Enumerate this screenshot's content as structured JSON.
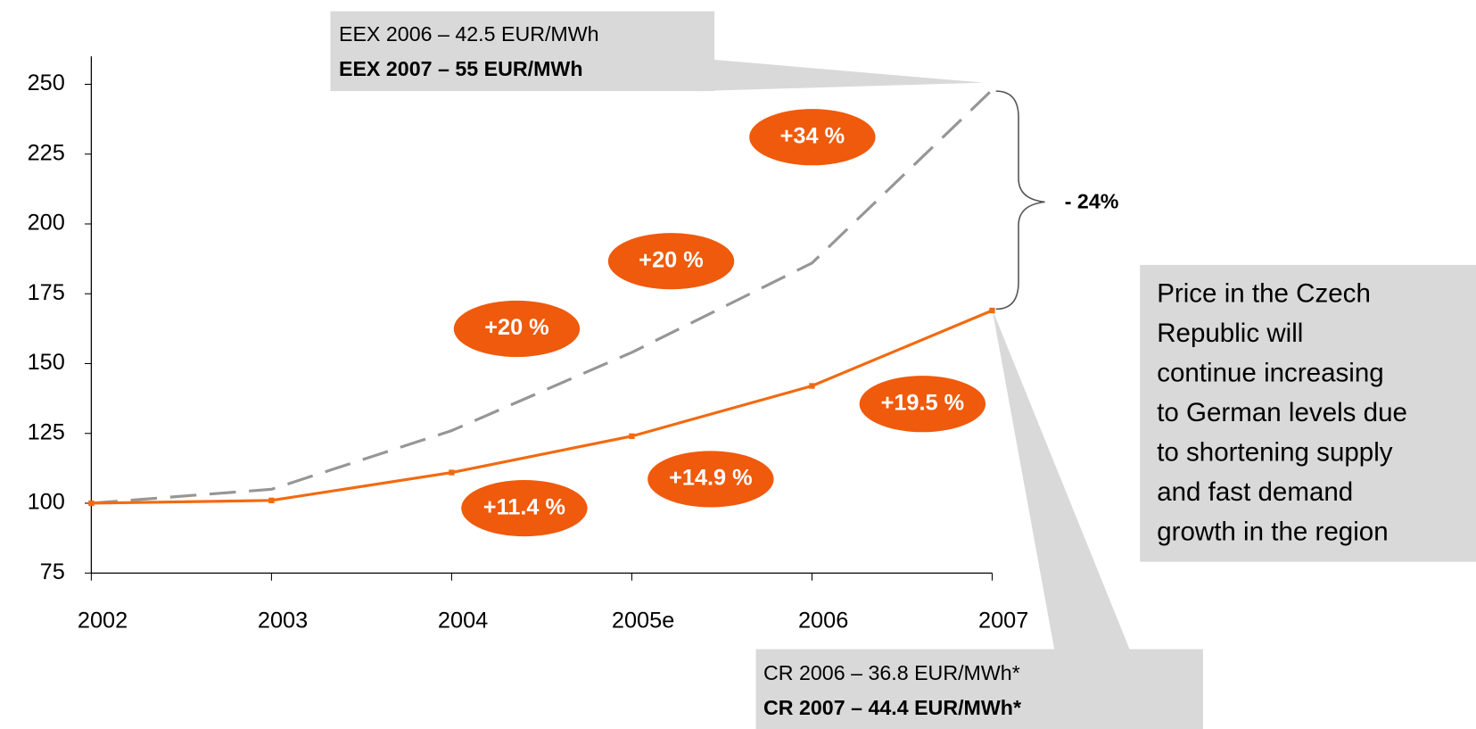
{
  "chart_data": {
    "type": "line",
    "categories": [
      "2002",
      "2003",
      "2004",
      "2005e",
      "2006",
      "2007"
    ],
    "series": [
      {
        "color": "#969696",
        "dashed": true,
        "values": [
          100,
          105,
          126,
          154,
          186,
          248
        ]
      },
      {
        "color": "#f26a10",
        "dashed": false,
        "values": [
          100,
          101,
          111,
          124,
          142,
          169
        ]
      }
    ],
    "ylim": [
      75,
      260
    ],
    "yticks": [
      75,
      100,
      125,
      150,
      175,
      200,
      225,
      250
    ],
    "growth_labels": [
      "+34 %",
      "+20 %",
      "+20 %",
      "+19.5 %",
      "+14.9 %",
      "+11.4 %"
    ],
    "eex_box": [
      "EEX 2006 – 42.5 EUR/MWh",
      "EEX 2007 – 55  EUR/MWh"
    ],
    "cr_box": [
      "CR 2006 – 36.8 EUR/MWh*",
      "CR 2007 – 44.4 EUR/MWh*"
    ],
    "gap_label": "- 24%",
    "note": [
      "Price in the Czech",
      "Republic will",
      "continue increasing",
      "to German levels due",
      "to shortening supply",
      "and fast demand",
      "growth in the region"
    ]
  }
}
